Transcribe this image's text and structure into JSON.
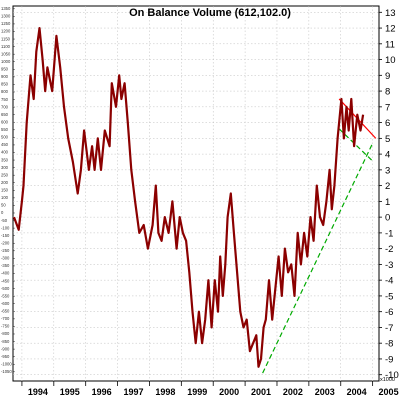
{
  "chart_data": {
    "type": "line",
    "title": "On Balance Volume (612,102.0)",
    "xlabel": "",
    "ylabel": "",
    "unit_label": "x1000",
    "x_tick_labels": [
      "1994",
      "1995",
      "1996",
      "1997",
      "1998",
      "1999",
      "2000",
      "2001",
      "2002",
      "2003",
      "2004",
      "2005"
    ],
    "x_range": [
      1993.72,
      2005.2
    ],
    "y_range": [
      -10.4,
      13.4
    ],
    "right_axis_ticks": [
      13,
      12,
      11,
      10,
      9,
      8,
      7,
      6,
      5,
      4,
      3,
      2,
      1,
      0,
      -1,
      -2,
      -3,
      -4,
      -5,
      -6,
      -7,
      -8,
      -9,
      -10
    ],
    "left_axis_ticks": [
      1350,
      1300,
      1250,
      1200,
      1150,
      1100,
      1050,
      1000,
      950,
      900,
      850,
      800,
      750,
      700,
      650,
      600,
      550,
      500,
      450,
      400,
      350,
      300,
      250,
      200,
      150,
      100,
      50,
      0,
      -50,
      -100,
      -150,
      -200,
      -250,
      -300,
      -350,
      -400,
      -450,
      -500,
      -550,
      -600,
      -650,
      -700,
      -750,
      -800,
      -850,
      -900,
      -950,
      -1000,
      -1050
    ],
    "grid": true,
    "series": [
      {
        "color": "#8b0000",
        "x": [
          1993.75,
          1993.9,
          1994.0,
          1994.05,
          1994.15,
          1994.27,
          1994.37,
          1994.45,
          1994.55,
          1994.65,
          1994.73,
          1994.8,
          1994.95,
          1995.08,
          1995.2,
          1995.32,
          1995.45,
          1995.6,
          1995.75,
          1995.85,
          1995.95,
          1996.1,
          1996.2,
          1996.28,
          1996.38,
          1996.48,
          1996.6,
          1996.75,
          1996.82,
          1996.95,
          1997.05,
          1997.12,
          1997.22,
          1997.32,
          1997.43,
          1997.55,
          1997.68,
          1997.82,
          1997.95,
          1998.1,
          1998.2,
          1998.28,
          1998.38,
          1998.48,
          1998.6,
          1998.72,
          1998.85,
          1998.95,
          1999.05,
          1999.15,
          1999.25,
          1999.35,
          1999.45,
          1999.55,
          1999.65,
          1999.75,
          1999.85,
          1999.95,
          2000.05,
          2000.15,
          2000.22,
          2000.3,
          2000.38,
          2000.45,
          2000.55,
          2000.65,
          2000.75,
          2000.85,
          2000.95,
          2001.05,
          2001.15,
          2001.25,
          2001.35,
          2001.42,
          2001.5,
          2001.58,
          2001.65,
          2001.75,
          2001.85,
          2001.95,
          2002.05,
          2002.15,
          2002.25,
          2002.35,
          2002.45,
          2002.55,
          2002.65,
          2002.75,
          2002.85,
          2002.95,
          2003.05,
          2003.15,
          2003.25,
          2003.35,
          2003.45,
          2003.55,
          2003.65,
          2003.72,
          2003.8,
          2003.9,
          2004.02,
          2004.1,
          2004.18,
          2004.25,
          2004.33,
          2004.42,
          2004.52,
          2004.62,
          2004.7
        ],
        "y": [
          0,
          -0.8,
          1,
          2,
          6,
          9,
          7.5,
          10.5,
          12,
          10,
          8,
          9.5,
          8,
          11.5,
          9.5,
          7,
          5,
          3.5,
          1.5,
          3,
          5.5,
          3,
          4.5,
          3,
          5,
          3,
          5.5,
          4.5,
          8.5,
          7,
          9,
          7.5,
          8.5,
          6,
          3,
          1,
          -1,
          -0.5,
          -2,
          -0.5,
          2,
          -1,
          -1.5,
          0,
          -1,
          1,
          -2,
          0,
          -1,
          -1.5,
          -3.5,
          -6,
          -8,
          -6,
          -8,
          -6.5,
          -4,
          -7,
          -4,
          -6,
          -2.5,
          -5,
          -3,
          0,
          1.5,
          -1,
          -3.5,
          -6,
          -7,
          -6.5,
          -8.5,
          -8,
          -7.5,
          -9.5,
          -9,
          -7,
          -6.5,
          -4,
          -6.5,
          -4.5,
          -2.5,
          -5,
          -2,
          -3.5,
          -3,
          -5,
          -1,
          -3,
          -1,
          -2.5,
          0,
          -1.5,
          2,
          0,
          -0.5,
          1,
          3,
          0.5,
          2,
          5,
          7.5,
          5,
          7,
          5.5,
          7.5,
          4.5,
          6.5,
          5.5,
          6.5
        ]
      }
    ],
    "trendlines": [
      {
        "color": "#00aa00",
        "style": "dashed",
        "x": [
          2001.55,
          2004.98
        ],
        "y": [
          -9.9,
          4.6
        ]
      },
      {
        "color": "#00aa00",
        "style": "dashed",
        "x": [
          2003.95,
          2004.98
        ],
        "y": [
          5.6,
          3.6
        ]
      },
      {
        "color": "#ff0000",
        "style": "solid",
        "x": [
          2003.95,
          2005.1
        ],
        "y": [
          7.5,
          5.0
        ]
      }
    ]
  }
}
